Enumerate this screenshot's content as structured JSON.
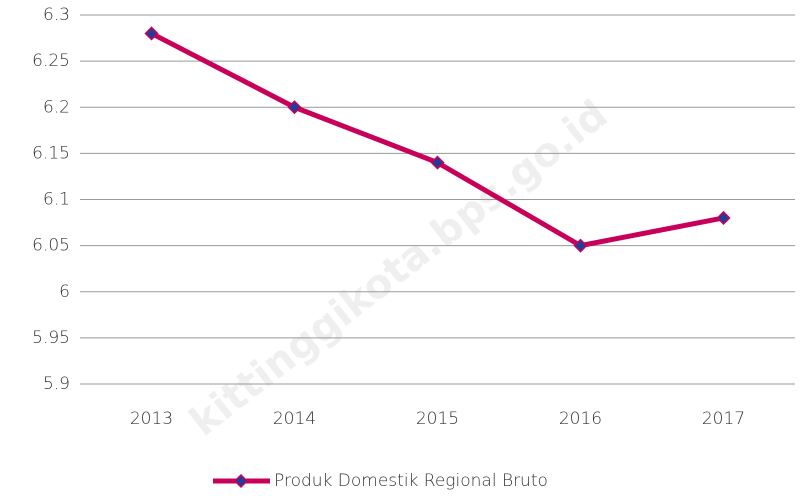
{
  "chart_data": {
    "type": "line",
    "categories": [
      "2013",
      "2014",
      "2015",
      "2016",
      "2017"
    ],
    "series": [
      {
        "name": "Produk Domestik Regional Bruto",
        "color": "#c8005a",
        "marker_color": "#1f3d99",
        "values": [
          6.28,
          6.2,
          6.14,
          6.05,
          6.08
        ]
      }
    ],
    "ylim": [
      5.9,
      6.3
    ],
    "yticks": [
      5.9,
      5.95,
      6,
      6.05,
      6.1,
      6.15,
      6.2,
      6.25,
      6.3
    ],
    "grid": true,
    "legend": "bottom",
    "watermark": "kittinggikota.bps.go.id"
  }
}
